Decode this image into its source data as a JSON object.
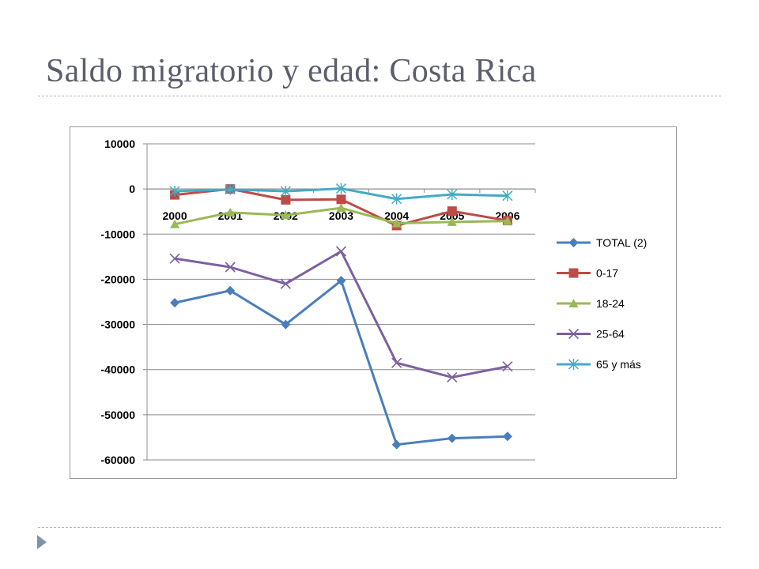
{
  "slide": {
    "title": "Saldo migratorio y edad: Costa Rica"
  },
  "colors": {
    "total": "#4a7ebb",
    "s0_17": "#be4b48",
    "s18_24": "#98b954",
    "s25_64": "#7d60a0",
    "s65": "#46aac5",
    "grid": "#8c8c8c",
    "title": "#5b5e6b",
    "rule": "#a8b8c6",
    "bullet": "#7f93a8"
  },
  "chart_data": {
    "type": "line",
    "title": "",
    "xlabel": "",
    "ylabel": "",
    "categories": [
      "2000",
      "2001",
      "2002",
      "2003",
      "2004",
      "2005",
      "2006"
    ],
    "ylim": [
      -60000,
      10000
    ],
    "yticks": [
      10000,
      0,
      -10000,
      -20000,
      -30000,
      -40000,
      -50000,
      -60000
    ],
    "grid": true,
    "legend": "right",
    "series": [
      {
        "name": "TOTAL (2)",
        "marker": "diamond",
        "color": "#4a7ebb",
        "values": [
          -25200,
          -22500,
          -30000,
          -20300,
          -56600,
          -55200,
          -54800
        ]
      },
      {
        "name": "0-17",
        "marker": "square",
        "color": "#be4b48",
        "values": [
          -1300,
          0,
          -2400,
          -2300,
          -8100,
          -4900,
          -7000
        ]
      },
      {
        "name": "18-24",
        "marker": "triangle",
        "color": "#98b954",
        "values": [
          -7800,
          -5200,
          -5800,
          -4200,
          -7600,
          -7300,
          -7100
        ]
      },
      {
        "name": "25-64",
        "marker": "x",
        "color": "#7d60a0",
        "values": [
          -15400,
          -17300,
          -21000,
          -13800,
          -38500,
          -41700,
          -39300
        ]
      },
      {
        "name": "65 y más",
        "marker": "asterisk",
        "color": "#46aac5",
        "values": [
          -500,
          -100,
          -500,
          100,
          -2200,
          -1200,
          -1500
        ]
      }
    ]
  }
}
